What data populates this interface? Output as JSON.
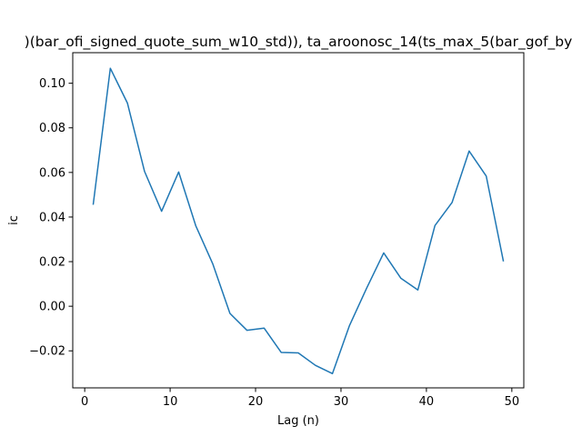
{
  "chart_data": {
    "type": "line",
    "title": ")(bar_ofi_signed_quote_sum_w10_std)), ta_aroonosc_14(ts_max_5(bar_gof_by",
    "xlabel": "Lag (n)",
    "ylabel": "ic",
    "xlim": [
      -1.4,
      51.4
    ],
    "ylim": [
      -0.0366,
      0.1137
    ],
    "x_ticks": [
      0,
      10,
      20,
      30,
      40,
      50
    ],
    "x_tick_labels": [
      "0",
      "10",
      "20",
      "30",
      "40",
      "50"
    ],
    "y_ticks": [
      -0.02,
      0.0,
      0.02,
      0.04,
      0.06,
      0.08,
      0.1
    ],
    "y_tick_labels": [
      "−0.02",
      "0.00",
      "0.02",
      "0.04",
      "0.06",
      "0.08",
      "0.10"
    ],
    "grid": false,
    "series": [
      {
        "color": "#1f77b4",
        "x": [
          1,
          3,
          5,
          7,
          9,
          11,
          13,
          15,
          17,
          19,
          21,
          23,
          25,
          27,
          29,
          31,
          33,
          35,
          37,
          39,
          41,
          43,
          45,
          47,
          49
        ],
        "y": [
          0.0458,
          0.1067,
          0.0911,
          0.0605,
          0.0426,
          0.0602,
          0.0361,
          0.0189,
          -0.0032,
          -0.0108,
          -0.0098,
          -0.0207,
          -0.0209,
          -0.0265,
          -0.0302,
          -0.0086,
          0.0081,
          0.0239,
          0.0126,
          0.0073,
          0.0362,
          0.0465,
          0.0696,
          0.0584,
          0.0204
        ]
      }
    ]
  }
}
